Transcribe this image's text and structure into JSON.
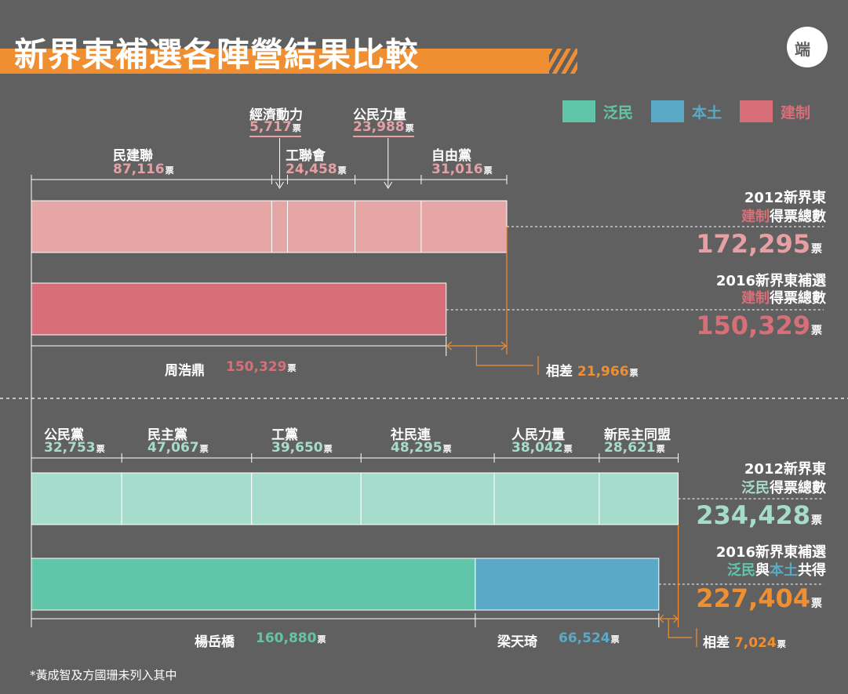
{
  "title": "新界東補選各陣營結果比較",
  "logo_text": "端",
  "piao": "票",
  "legend": [
    {
      "label": "泛民",
      "color": "#61c6a9"
    },
    {
      "label": "本土",
      "color": "#5aa9c6"
    },
    {
      "label": "建制",
      "color": "#d86f78"
    }
  ],
  "colors": {
    "light_pink": "#e6a6a6",
    "pink": "#d86f78",
    "light_green": "#a6dccb",
    "green": "#61c6a9",
    "blue": "#5aa9c6",
    "orange": "#ef8f32",
    "pink_text": "#e6a0a4",
    "green_text": "#a6dccb"
  },
  "top": {
    "parties": [
      {
        "name": "民建聯",
        "value_text": "87,116"
      },
      {
        "name": "經濟動力",
        "value_text": "5,717"
      },
      {
        "name": "工聯會",
        "value_text": "24,458"
      },
      {
        "name": "公民力量",
        "value_text": "23,988"
      },
      {
        "name": "自由黨",
        "value_text": "31,016"
      }
    ],
    "right_2012_line1": "2012新界東",
    "right_2012_line2_colored": "建制",
    "right_2012_line2_rest": "得票總數",
    "right_2012_total": "172,295",
    "right_2016_line1": "2016新界東補選",
    "right_2016_line2_colored": "建制",
    "right_2016_line2_rest": "得票總數",
    "right_2016_total": "150,329",
    "candidate_name": "周浩鼎",
    "candidate_value": "150,329",
    "diff_label": "相差",
    "diff_value": "21,966"
  },
  "bottom": {
    "parties": [
      {
        "name": "公民黨",
        "value_text": "32,753"
      },
      {
        "name": "民主黨",
        "value_text": "47,067"
      },
      {
        "name": "工黨",
        "value_text": "39,650"
      },
      {
        "name": "社民連",
        "value_text": "48,295"
      },
      {
        "name": "人民力量",
        "value_text": "38,042"
      },
      {
        "name": "新民主同盟",
        "value_text": "28,621"
      }
    ],
    "right_2012_line1": "2012新界東",
    "right_2012_line2_colored": "泛民",
    "right_2012_line2_rest": "得票總數",
    "right_2012_total": "234,428",
    "right_2016_line1": "2016新界東補選",
    "right_2016_part1": "泛民",
    "right_2016_part2": "與",
    "right_2016_part3": "本土",
    "right_2016_part4": "共得",
    "right_2016_total": "227,404",
    "cand1_name": "楊岳橋",
    "cand1_value": "160,880",
    "cand2_name": "梁天琦",
    "cand2_value": "66,524",
    "diff_label": "相差",
    "diff_value": "7,024"
  },
  "note": "*黃成智及方國珊未列入其中",
  "chart_data": [
    {
      "type": "bar",
      "title": "新界東補選各陣營結果比較",
      "categories": [
        "2012新界東 建制得票總數",
        "2016新界東補選 建制得票總數"
      ],
      "series": [
        {
          "name": "民建聯",
          "values": [
            87116,
            0
          ]
        },
        {
          "name": "經濟動力",
          "values": [
            5717,
            0
          ]
        },
        {
          "name": "工聯會",
          "values": [
            24458,
            0
          ]
        },
        {
          "name": "公民力量",
          "values": [
            23988,
            0
          ]
        },
        {
          "name": "自由黨",
          "values": [
            31016,
            0
          ]
        },
        {
          "name": "周浩鼎",
          "values": [
            0,
            150329
          ]
        }
      ],
      "totals": [
        172295,
        150329
      ],
      "difference": 21966
    },
    {
      "type": "bar",
      "categories": [
        "2012新界東 泛民得票總數",
        "2016新界東補選 泛民與本土共得"
      ],
      "series": [
        {
          "name": "公民黨",
          "values": [
            32753,
            0
          ]
        },
        {
          "name": "民主黨",
          "values": [
            47067,
            0
          ]
        },
        {
          "name": "工黨",
          "values": [
            39650,
            0
          ]
        },
        {
          "name": "社民連",
          "values": [
            48295,
            0
          ]
        },
        {
          "name": "人民力量",
          "values": [
            38042,
            0
          ]
        },
        {
          "name": "新民主同盟",
          "values": [
            28621,
            0
          ]
        },
        {
          "name": "楊岳橋",
          "values": [
            0,
            160880
          ]
        },
        {
          "name": "梁天琦",
          "values": [
            0,
            66524
          ]
        }
      ],
      "totals": [
        234428,
        227404
      ],
      "difference": 7024
    }
  ]
}
